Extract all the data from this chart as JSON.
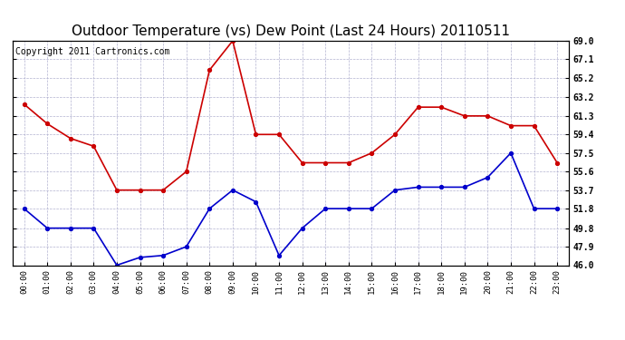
{
  "title": "Outdoor Temperature (vs) Dew Point (Last 24 Hours) 20110511",
  "copyright": "Copyright 2011 Cartronics.com",
  "x_labels": [
    "00:00",
    "01:00",
    "02:00",
    "03:00",
    "04:00",
    "05:00",
    "06:00",
    "07:00",
    "08:00",
    "09:00",
    "10:00",
    "11:00",
    "12:00",
    "13:00",
    "14:00",
    "15:00",
    "16:00",
    "17:00",
    "18:00",
    "19:00",
    "20:00",
    "21:00",
    "22:00",
    "23:00"
  ],
  "temp_red": [
    62.5,
    60.5,
    59.0,
    58.2,
    53.7,
    53.7,
    53.7,
    55.6,
    66.0,
    69.0,
    59.4,
    59.4,
    56.5,
    56.5,
    56.5,
    57.5,
    59.4,
    62.2,
    62.2,
    61.3,
    61.3,
    60.3,
    60.3,
    56.5
  ],
  "dew_blue": [
    51.8,
    49.8,
    49.8,
    49.8,
    46.0,
    46.8,
    47.0,
    47.9,
    51.8,
    53.7,
    52.5,
    47.0,
    49.8,
    51.8,
    51.8,
    51.8,
    53.7,
    54.0,
    54.0,
    54.0,
    55.0,
    57.5,
    51.8,
    51.8
  ],
  "ylim": [
    46.0,
    69.0
  ],
  "yticks": [
    46.0,
    47.9,
    49.8,
    51.8,
    53.7,
    55.6,
    57.5,
    59.4,
    61.3,
    63.2,
    65.2,
    67.1,
    69.0
  ],
  "red_color": "#cc0000",
  "blue_color": "#0000cc",
  "bg_color": "#ffffff",
  "grid_color": "#aaaacc",
  "title_fontsize": 11,
  "copyright_fontsize": 7
}
